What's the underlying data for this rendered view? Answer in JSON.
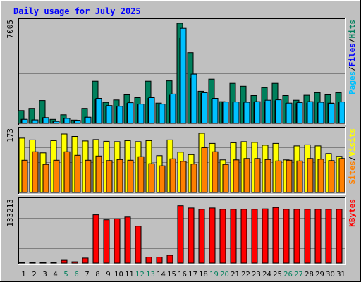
{
  "chart_data": {
    "type": "bar",
    "title": "Daily usage for July 2025",
    "days": [
      "1",
      "2",
      "3",
      "4",
      "5",
      "6",
      "7",
      "8",
      "9",
      "10",
      "11",
      "12",
      "13",
      "14",
      "15",
      "16",
      "17",
      "18",
      "19",
      "20",
      "21",
      "22",
      "23",
      "24",
      "25",
      "26",
      "27",
      "28",
      "29",
      "30",
      "31"
    ],
    "weekend_days": [
      "5",
      "6",
      "12",
      "13",
      "19",
      "20",
      "26",
      "27"
    ],
    "colors": {
      "title": "#0000ff",
      "hits": "#00805c",
      "files": "#0000ff",
      "pages": "#00c0ff",
      "visits": "#ffff00",
      "sites": "#ff8000",
      "kbytes": "#ff0000",
      "weekend_label": "#00805c",
      "weekday_label": "#000000",
      "plot_bg": "#c0c0c0",
      "gridline": "#808080"
    },
    "panels": [
      {
        "id": "hits",
        "max_label": "7005",
        "ymax": 7005,
        "legend": [
          {
            "text": "Pages",
            "color": "#00c0ff"
          },
          {
            "text": "/",
            "color": "#000000"
          },
          {
            "text": "Files",
            "color": "#0000ff"
          },
          {
            "text": "/",
            "color": "#000000"
          },
          {
            "text": "Hits",
            "color": "#00805c"
          }
        ],
        "series": [
          {
            "name": "Hits",
            "color": "#00805c",
            "values": [
              900,
              1050,
              1600,
              280,
              600,
              230,
              1050,
              2950,
              1470,
              1640,
              2000,
              1800,
              2950,
              1420,
              2980,
              7005,
              4950,
              2250,
              3100,
              1520,
              2800,
              2600,
              1950,
              2500,
              2800,
              1950,
              1620,
              1970,
              2150,
              2000,
              2150
            ]
          },
          {
            "name": "Files",
            "color": "#0000ff",
            "values": [
              280,
              240,
              400,
              140,
              350,
              210,
              430,
              1650,
              1200,
              1150,
              1400,
              1300,
              1750,
              1300,
              1950,
              5950,
              3150,
              2100,
              1700,
              1480,
              1450,
              1430,
              1480,
              1500,
              1580,
              1400,
              1390,
              1420,
              1420,
              1420,
              1450
            ]
          },
          {
            "name": "Pages",
            "color": "#00c0ff",
            "values": [
              280,
              240,
              400,
              140,
              350,
              210,
              430,
              1750,
              1250,
              1200,
              1450,
              1350,
              1800,
              1350,
              2050,
              6650,
              3450,
              2150,
              1750,
              1500,
              1500,
              1480,
              1520,
              1620,
              1650,
              1420,
              1460,
              1520,
              1480,
              1400,
              1500
            ]
          }
        ]
      },
      {
        "id": "visits",
        "max_label": "173",
        "ymax": 173,
        "legend": [
          {
            "text": "Sites",
            "color": "#ff8000"
          },
          {
            "text": "/",
            "color": "#000000"
          },
          {
            "text": "Visits",
            "color": "#ffff00"
          }
        ],
        "series": [
          {
            "name": "Visits",
            "color": "#ffff00",
            "values": [
              155,
              150,
              113,
              148,
              167,
              160,
              147,
              151,
              146,
              145,
              148,
              145,
              148,
              105,
              150,
              115,
              108,
              169,
              140,
              93,
              142,
              145,
              143,
              135,
              140,
              93,
              133,
              136,
              133,
              111,
              103
            ]
          },
          {
            "name": "Sites",
            "color": "#ff8000",
            "values": [
              92,
              116,
              80,
              92,
              116,
              106,
              92,
              104,
              91,
              94,
              92,
              102,
              82,
              76,
              96,
              89,
              81,
              128,
              116,
              80,
              93,
              97,
              97,
              94,
              90,
              92,
              90,
              97,
              95,
              91,
              97
            ]
          }
        ]
      },
      {
        "id": "kbytes",
        "max_label": "133213",
        "ymax": 133213,
        "legend": [
          {
            "text": "KBytes",
            "color": "#ff0000"
          }
        ],
        "series": [
          {
            "name": "KBytes",
            "color": "#ff0000",
            "values": [
              800,
              800,
              800,
              800,
              6000,
              3000,
              11000,
              106000,
              95000,
              97000,
              101000,
              81000,
              13000,
              13000,
              17000,
              126000,
              121000,
              118000,
              121000,
              118000,
              118000,
              118000,
              118000,
              119000,
              122000,
              118000,
              118000,
              118000,
              118000,
              118000,
              118000
            ]
          }
        ]
      }
    ]
  }
}
